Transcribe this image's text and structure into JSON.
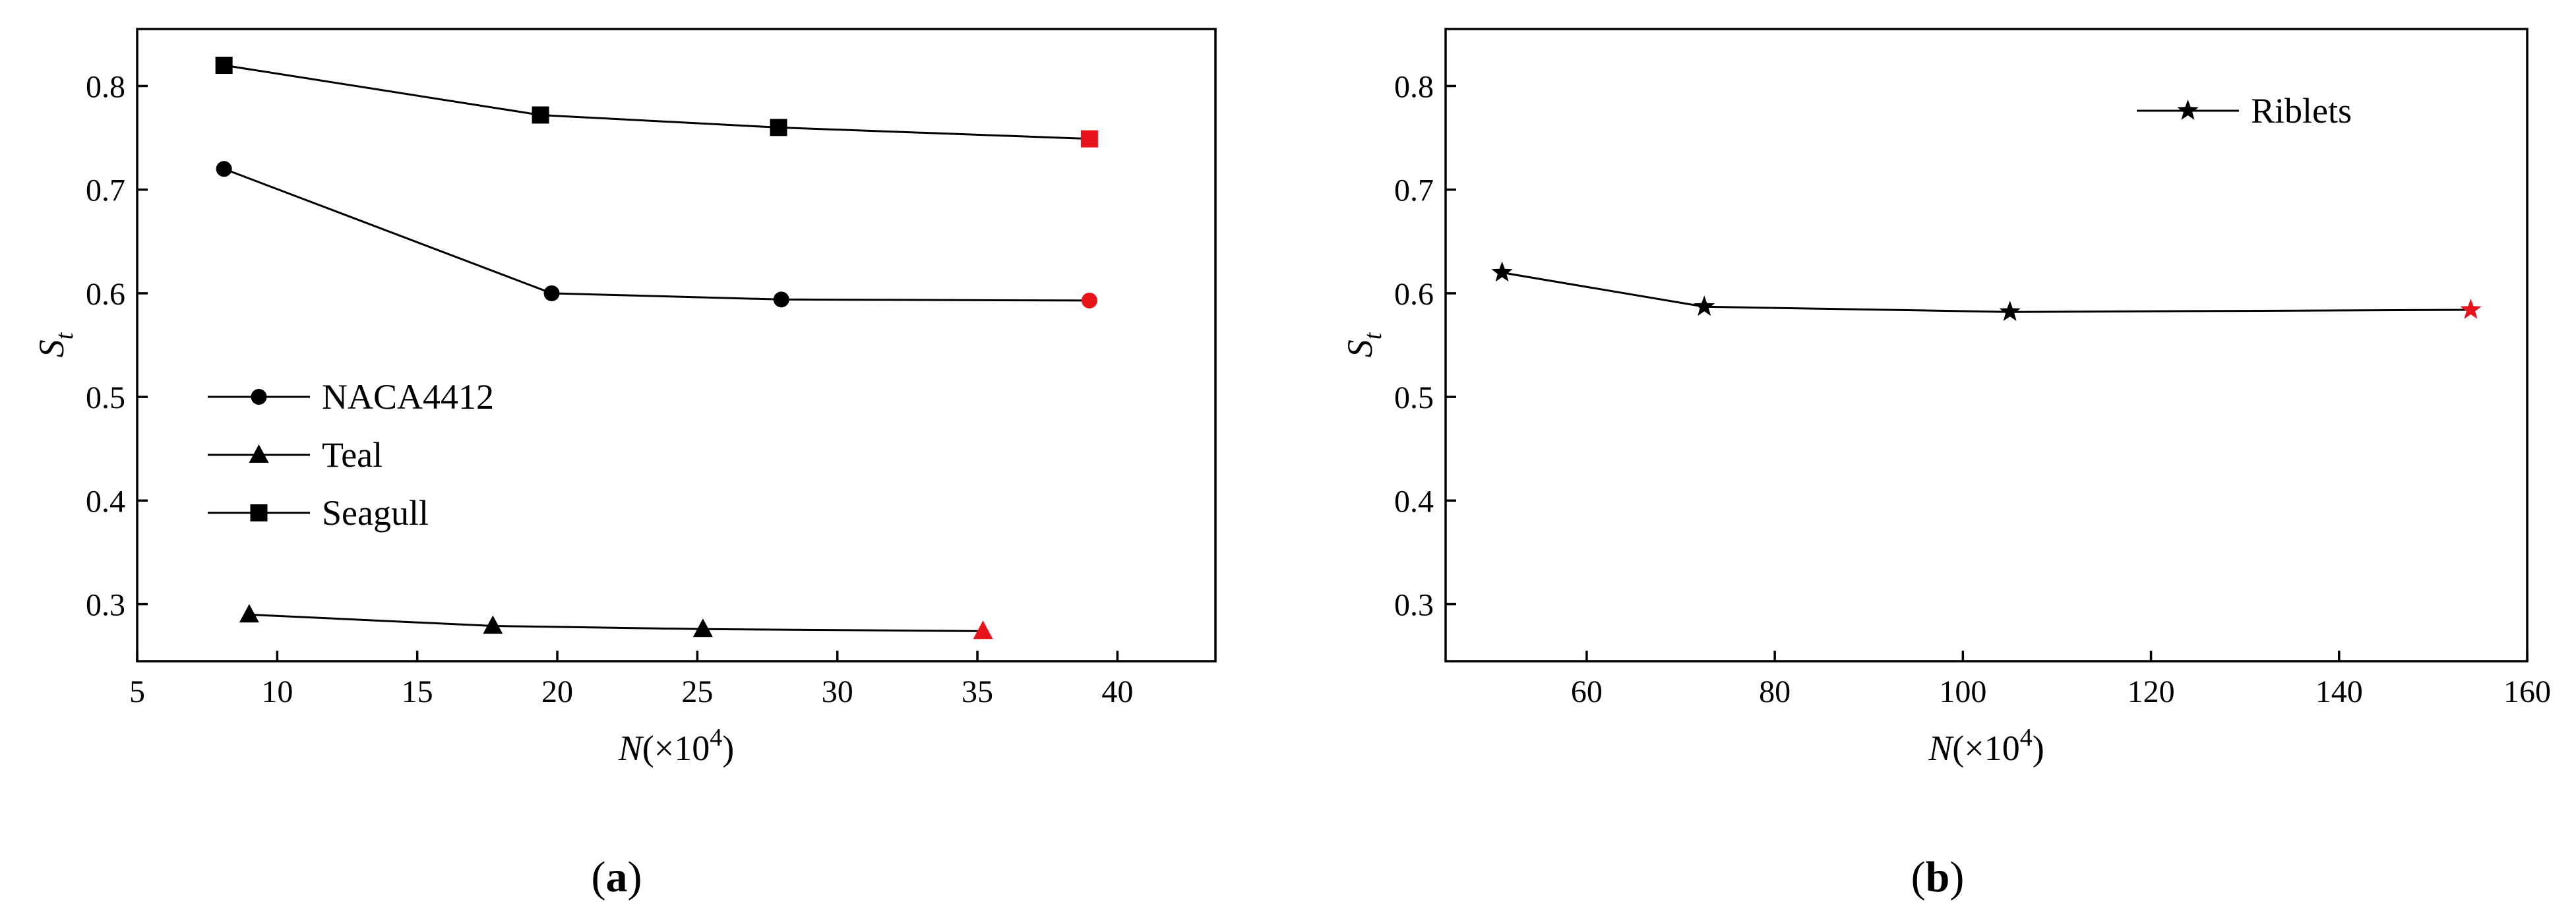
{
  "colors": {
    "default_marker": "#000000",
    "highlight_marker": "#e8141c"
  },
  "panels": [
    {
      "label_open": "(",
      "label_letter": "a",
      "label_close": ")"
    },
    {
      "label_open": "(",
      "label_letter": "b",
      "label_close": ")"
    }
  ],
  "chart_data": [
    {
      "type": "line",
      "xlabel": {
        "var": "N",
        "pre": "(×10",
        "exp": "4",
        "post": ")"
      },
      "ylabel": {
        "var": "S",
        "sub": "t"
      },
      "xlim": [
        5,
        43.5
      ],
      "ylim": [
        0.245,
        0.855
      ],
      "xticks": [
        5,
        10,
        15,
        20,
        25,
        30,
        35,
        40
      ],
      "yticks": [
        0.3,
        0.4,
        0.5,
        0.6,
        0.7,
        0.8
      ],
      "grid": false,
      "legend_position": "middle-left",
      "series": [
        {
          "name": "NACA4412",
          "marker": "circle",
          "x": [
            8.1,
            19.8,
            28.0,
            39.0
          ],
          "y": [
            0.72,
            0.6,
            0.594,
            0.593
          ],
          "highlight_last": true
        },
        {
          "name": "Teal",
          "marker": "triangle",
          "x": [
            9.0,
            17.7,
            25.2,
            35.2
          ],
          "y": [
            0.29,
            0.279,
            0.276,
            0.274
          ],
          "highlight_last": true
        },
        {
          "name": "Seagull",
          "marker": "square",
          "x": [
            8.1,
            19.4,
            27.9,
            39.0
          ],
          "y": [
            0.82,
            0.772,
            0.76,
            0.749
          ],
          "highlight_last": true
        }
      ]
    },
    {
      "type": "line",
      "xlabel": {
        "var": "N",
        "pre": "(×10",
        "exp": "4",
        "post": ")"
      },
      "ylabel": {
        "var": "S",
        "sub": "t"
      },
      "xlim": [
        45,
        160
      ],
      "ylim": [
        0.245,
        0.855
      ],
      "xticks": [
        60,
        80,
        100,
        120,
        140,
        160
      ],
      "yticks": [
        0.3,
        0.4,
        0.5,
        0.6,
        0.7,
        0.8
      ],
      "grid": false,
      "legend_position": "top-right",
      "series": [
        {
          "name": "Riblets",
          "marker": "star",
          "x": [
            51.0,
            72.5,
            105.0,
            154.0
          ],
          "y": [
            0.62,
            0.587,
            0.582,
            0.584
          ],
          "highlight_last": true
        }
      ]
    }
  ]
}
